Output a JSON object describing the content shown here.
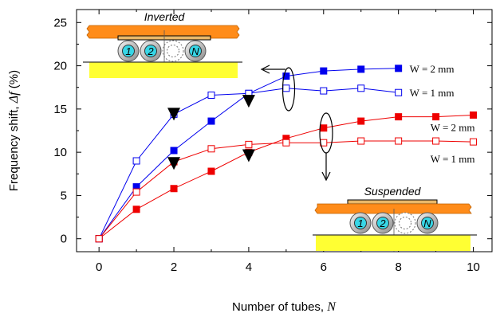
{
  "chart_data": {
    "type": "line",
    "xlabel": "Number of tubes,",
    "xlabel_var": "N",
    "ylabel": "Frequency shift,",
    "ylabel_var": "Δf",
    "ylabel_unit": "(%)",
    "xlim": [
      -0.6,
      10.5
    ],
    "ylim": [
      -1.5,
      26.5
    ],
    "xticks": [
      0,
      2,
      4,
      6,
      8,
      10
    ],
    "yticks": [
      0,
      5,
      10,
      15,
      20,
      25
    ],
    "grid": false,
    "series": [
      {
        "group": "Inverted",
        "color": "#0000ee",
        "marker": "filled-square",
        "label": "W = 2 mm",
        "x": [
          0,
          1,
          2,
          3,
          4,
          5,
          6,
          7,
          8
        ],
        "y": [
          0,
          6.0,
          10.2,
          13.6,
          16.8,
          18.8,
          19.4,
          19.6,
          19.7
        ]
      },
      {
        "group": "Inverted",
        "color": "#0000ee",
        "marker": "open-square",
        "label": "W = 1 mm",
        "x": [
          0,
          1,
          2,
          3,
          4,
          5,
          6,
          7,
          8
        ],
        "y": [
          0,
          9.0,
          14.4,
          16.6,
          16.8,
          17.4,
          17.1,
          17.4,
          16.9
        ]
      },
      {
        "group": "Suspended",
        "color": "#ee0000",
        "marker": "filled-square",
        "label": "W = 2 mm",
        "x": [
          0,
          1,
          2,
          3,
          4,
          5,
          6,
          7,
          8,
          9,
          10
        ],
        "y": [
          0,
          3.4,
          5.8,
          7.8,
          10.0,
          11.6,
          12.8,
          13.6,
          14.1,
          14.1,
          14.3
        ]
      },
      {
        "group": "Suspended",
        "color": "#ee0000",
        "marker": "open-square",
        "label": "W = 1 mm",
        "x": [
          0,
          1,
          2,
          3,
          4,
          5,
          6,
          7,
          8,
          9,
          10
        ],
        "y": [
          0,
          5.4,
          8.9,
          10.4,
          10.9,
          11.1,
          11.1,
          11.3,
          11.3,
          11.3,
          11.2
        ]
      }
    ],
    "triangle_markers": [
      {
        "x": 2,
        "y": 14.4
      },
      {
        "x": 2,
        "y": 8.7
      },
      {
        "x": 4,
        "y": 15.9
      },
      {
        "x": 4,
        "y": 9.6
      }
    ],
    "annotations": {
      "inverted_label": "Inverted",
      "suspended_label": "Suspended",
      "tube_labels": [
        "1",
        "2",
        "",
        "N"
      ]
    }
  }
}
